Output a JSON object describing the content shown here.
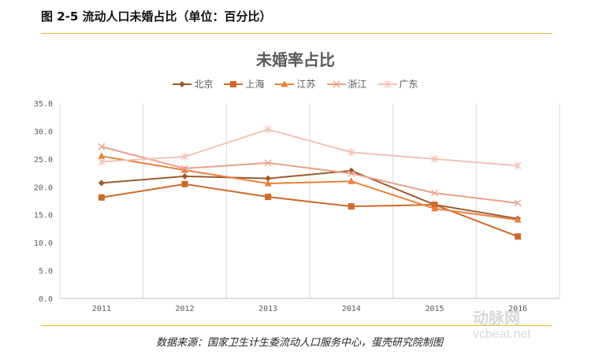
{
  "figure_title": "图 2-5 流动人口未婚占比（单位：百分比）",
  "source": "数据来源：国家卫生计生委流动人口服务中心，蛋壳研究院制图",
  "watermark": {
    "brand": "动脉网",
    "site": "vcbeat.net"
  },
  "chart_data": {
    "type": "line",
    "title": "未婚率占比",
    "xlabel": "",
    "ylabel": "",
    "categories": [
      "2011",
      "2012",
      "2013",
      "2014",
      "2015",
      "2016"
    ],
    "ylim": [
      0,
      35
    ],
    "yticks": [
      "0.0",
      "5.0",
      "10.0",
      "15.0",
      "20.0",
      "25.0",
      "30.0",
      "35.0"
    ],
    "grid": "vertical",
    "legend_position": "top",
    "series": [
      {
        "name": "北京",
        "marker": "diamond",
        "color": "#9c5a2e",
        "values": [
          20.7,
          21.9,
          21.5,
          22.9,
          16.8,
          14.3
        ]
      },
      {
        "name": "上海",
        "marker": "square",
        "color": "#cc6a2a",
        "values": [
          18.1,
          20.5,
          18.2,
          16.5,
          16.8,
          11.1
        ]
      },
      {
        "name": "江苏",
        "marker": "triangle",
        "color": "#e8803a",
        "values": [
          25.5,
          23.0,
          20.6,
          21.0,
          16.1,
          14.1
        ]
      },
      {
        "name": "浙江",
        "marker": "x",
        "color": "#eb9f88",
        "values": [
          27.2,
          23.3,
          24.3,
          22.4,
          18.9,
          17.1
        ]
      },
      {
        "name": "广东",
        "marker": "star",
        "color": "#f3c2b3",
        "values": [
          24.5,
          25.4,
          30.3,
          26.2,
          25.0,
          23.8
        ]
      }
    ]
  }
}
